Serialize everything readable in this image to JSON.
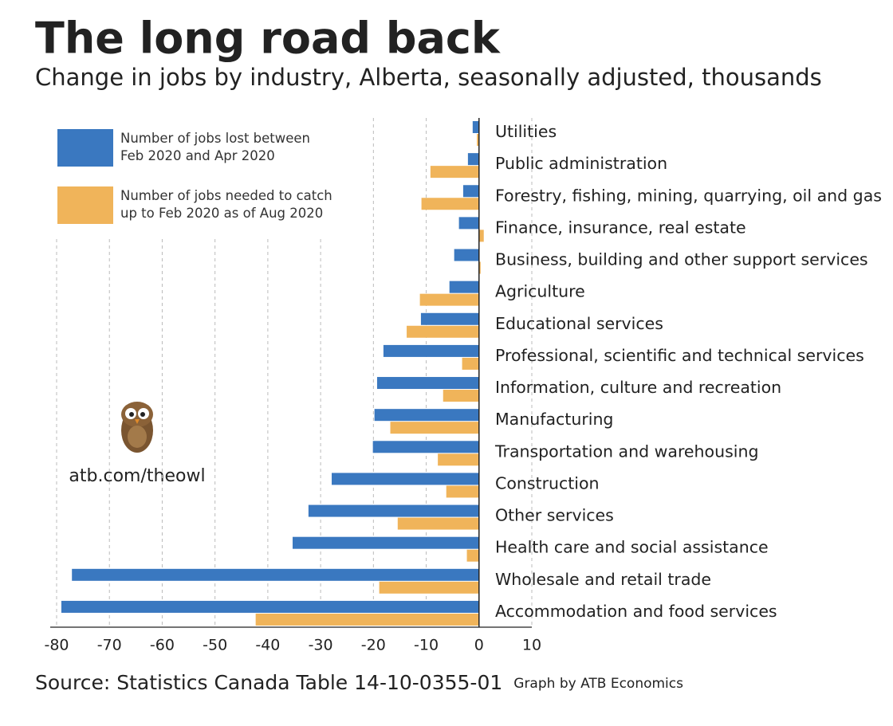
{
  "chart_data": {
    "type": "barh",
    "title": "The long road back",
    "subtitle": "Change in jobs by industry, Alberta, seasonally adjusted, thousands",
    "source": "Source: Statistics Canada Table 14-10-0355-01",
    "credit": "Graph by ATB Economics",
    "watermark": "atb.com/theowl",
    "categories": [
      "Utilities",
      "Public administration",
      "Forestry, fishing, mining, quarrying, oil and gas",
      "Finance, insurance, real estate",
      "Business, building and other support services",
      "Agriculture",
      "Educational services",
      "Professional, scientific and technical services",
      "Information, culture and recreation",
      "Manufacturing",
      "Transportation and warehousing",
      "Construction",
      "Other services",
      "Health care and social assistance",
      "Wholesale and retail trade",
      "Accommodation and food services"
    ],
    "series": [
      {
        "name": "Number of jobs lost between\nFeb 2020 and Apr 2020",
        "color": "#3a78c0",
        "values": [
          -1.2,
          -2.1,
          -3.0,
          -3.8,
          -4.7,
          -5.6,
          -11.0,
          -18.1,
          -19.3,
          -19.8,
          -20.1,
          -27.9,
          -32.3,
          -35.3,
          -77.1,
          -79.1
        ]
      },
      {
        "name": "Number of jobs needed to catch\nup to Feb 2020 as of Aug 2020",
        "color": "#f0b45a",
        "values": [
          -0.4,
          -9.2,
          -10.9,
          0.9,
          0.3,
          -11.2,
          -13.7,
          -3.2,
          -6.8,
          -16.8,
          -7.8,
          -6.2,
          -15.4,
          -2.3,
          -18.9,
          -42.3
        ]
      }
    ],
    "xlim": [
      -80,
      10
    ],
    "xticks": [
      -80,
      -70,
      -60,
      -50,
      -40,
      -30,
      -20,
      -10,
      0,
      10
    ],
    "grid": true
  }
}
